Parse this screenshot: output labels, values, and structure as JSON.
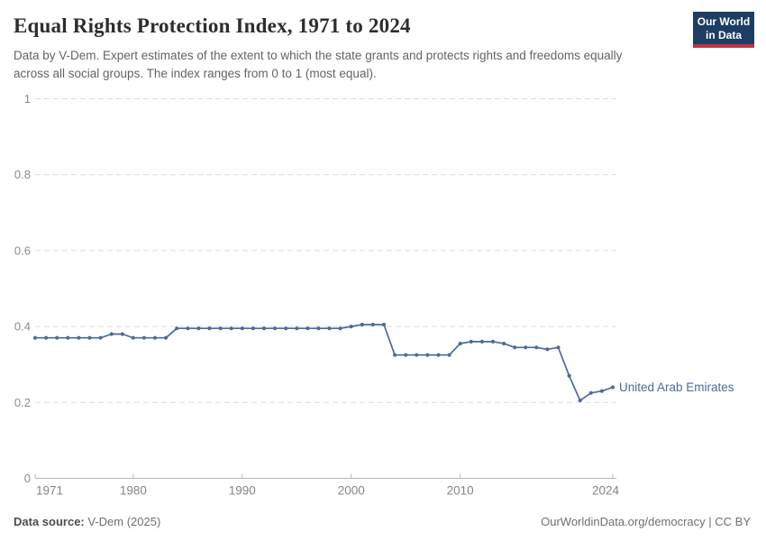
{
  "header": {
    "title": "Equal Rights Protection Index, 1971 to 2024",
    "subtitle": "Data by V-Dem. Expert estimates of the extent to which the state grants and protects rights and freedoms equally across all social groups. The index ranges from 0 to 1 (most equal).",
    "logo": {
      "line1": "Our World",
      "line2": "in Data",
      "bg_color": "#1d3d63",
      "accent_color": "#c0333e"
    }
  },
  "chart_data": {
    "type": "line",
    "title": "Equal Rights Protection Index, 1971 to 2024",
    "xlabel": "",
    "ylabel": "",
    "ylim": [
      0,
      1
    ],
    "yticks": [
      0,
      0.2,
      0.4,
      0.6,
      0.8,
      1
    ],
    "xticks": [
      1971,
      1980,
      1990,
      2000,
      2010,
      2024
    ],
    "grid": "horizontal-dashed",
    "legend": "end-of-line-label",
    "x": [
      1971,
      1972,
      1973,
      1974,
      1975,
      1976,
      1977,
      1978,
      1979,
      1980,
      1981,
      1982,
      1983,
      1984,
      1985,
      1986,
      1987,
      1988,
      1989,
      1990,
      1991,
      1992,
      1993,
      1994,
      1995,
      1996,
      1997,
      1998,
      1999,
      2000,
      2001,
      2002,
      2003,
      2004,
      2005,
      2006,
      2007,
      2008,
      2009,
      2010,
      2011,
      2012,
      2013,
      2014,
      2015,
      2016,
      2017,
      2018,
      2019,
      2020,
      2021,
      2022,
      2023,
      2024
    ],
    "series": [
      {
        "name": "United Arab Emirates",
        "color": "#4c6a9c",
        "values": [
          0.37,
          0.37,
          0.37,
          0.37,
          0.37,
          0.37,
          0.37,
          0.38,
          0.38,
          0.37,
          0.37,
          0.37,
          0.37,
          0.395,
          0.395,
          0.395,
          0.395,
          0.395,
          0.395,
          0.395,
          0.395,
          0.395,
          0.395,
          0.395,
          0.395,
          0.395,
          0.395,
          0.395,
          0.395,
          0.4,
          0.405,
          0.405,
          0.405,
          0.325,
          0.325,
          0.325,
          0.325,
          0.325,
          0.325,
          0.355,
          0.36,
          0.36,
          0.36,
          0.355,
          0.345,
          0.345,
          0.345,
          0.34,
          0.345,
          0.27,
          0.205,
          0.225,
          0.23,
          0.24
        ]
      }
    ],
    "axis_colors": {
      "gridline": "#dcdcdc",
      "axis_line": "#b6b6b6",
      "tick_label": "#858585"
    }
  },
  "footer": {
    "source_label": "Data source:",
    "source_value": "V-Dem (2025)",
    "credit": "OurWorldinData.org/democracy | CC BY"
  }
}
